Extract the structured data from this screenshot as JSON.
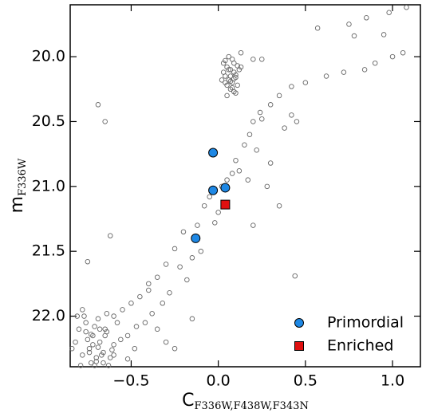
{
  "chart_data": {
    "type": "scatter",
    "xlabel": {
      "main": "C",
      "sub": "F336W,F438W,F343N"
    },
    "ylabel": {
      "main": "m",
      "sub": "F336W"
    },
    "xlim": [
      -0.85,
      1.16
    ],
    "ylim": [
      22.39,
      19.6
    ],
    "xticks": [
      {
        "value": -0.5,
        "label": "−0.5"
      },
      {
        "value": 0,
        "label": "0.0"
      },
      {
        "value": 0.5,
        "label": "0.5"
      },
      {
        "value": 1,
        "label": "1.0"
      }
    ],
    "yticks": [
      {
        "value": 20,
        "label": "20.0"
      },
      {
        "value": 20.5,
        "label": "20.5"
      },
      {
        "value": 21,
        "label": "21.0"
      },
      {
        "value": 21.5,
        "label": "21.5"
      },
      {
        "value": 22,
        "label": "22.0"
      }
    ],
    "legend": "lower right",
    "series": [
      {
        "color": "#666666",
        "marker": "open-circle",
        "x": [
          0.03,
          0.05,
          0.07,
          0.09,
          0.11,
          0.04,
          0.06,
          0.08,
          0.1,
          0.12,
          0.05,
          0.07,
          0.09,
          0.03,
          0.08,
          0.1,
          0.06,
          0.04,
          0.11,
          0.07,
          0.09,
          0.05,
          0.08,
          0.02,
          0.13,
          0.06,
          0.1,
          0.07,
          0.04,
          0.09,
          0.2,
          0.25,
          0.13,
          1.08,
          0.98,
          0.85,
          0.75,
          0.57,
          0.78,
          0.95,
          1.06,
          1.0,
          0.9,
          0.84,
          0.72,
          0.62,
          0.5,
          0.42,
          0.35,
          0.3,
          0.24,
          0.2,
          0.25,
          0.42,
          0.45,
          0.38,
          0.18,
          0.15,
          0.22,
          0.1,
          0.08,
          0.12,
          0.05,
          0.02,
          -0.05,
          -0.08,
          0.0,
          -0.12,
          -0.2,
          -0.1,
          -0.25,
          -0.3,
          -0.35,
          -0.4,
          -0.28,
          -0.45,
          -0.5,
          -0.55,
          -0.6,
          -0.42,
          -0.35,
          -0.65,
          -0.69,
          -0.65,
          0.35,
          0.44,
          -0.75,
          -0.62,
          0.2,
          0.28,
          0.3,
          0.17,
          -0.02,
          -0.15,
          -0.22,
          -0.18,
          -0.32,
          -0.38,
          -0.47,
          -0.52,
          -0.3,
          -0.25,
          -0.15,
          -0.4,
          -0.82,
          -0.8,
          -0.78,
          -0.76,
          -0.74,
          -0.72,
          -0.7,
          -0.68,
          -0.66,
          -0.64,
          -0.62,
          -0.6,
          -0.58,
          -0.79,
          -0.77,
          -0.75,
          -0.73,
          -0.71,
          -0.69,
          -0.67,
          -0.65,
          -0.63,
          -0.61,
          -0.81,
          -0.76,
          -0.72,
          -0.7,
          -0.68,
          -0.74,
          -0.66,
          -0.84,
          -0.78,
          -0.73,
          -0.69,
          -0.64,
          -0.6,
          -0.56,
          -0.52,
          -0.48,
          -0.71
        ],
        "y": [
          20.05,
          20.08,
          20.1,
          20.12,
          20.07,
          20.15,
          20.18,
          20.2,
          20.14,
          20.1,
          20.22,
          20.25,
          20.17,
          20.12,
          20.02,
          20.28,
          20.0,
          20.2,
          20.22,
          20.15,
          20.05,
          20.3,
          20.24,
          20.18,
          20.08,
          20.1,
          20.16,
          20.19,
          20.03,
          20.27,
          20.02,
          20.02,
          19.97,
          19.62,
          19.66,
          19.7,
          19.75,
          19.78,
          19.84,
          19.83,
          19.97,
          20.0,
          20.05,
          20.1,
          20.12,
          20.15,
          20.2,
          20.23,
          20.3,
          20.37,
          20.43,
          20.5,
          20.48,
          20.45,
          20.5,
          20.55,
          20.6,
          20.68,
          20.72,
          20.8,
          20.9,
          20.88,
          20.95,
          21.0,
          21.08,
          21.15,
          21.2,
          21.3,
          21.35,
          21.5,
          21.48,
          21.6,
          21.7,
          21.75,
          21.82,
          21.85,
          21.9,
          21.95,
          22.0,
          22.05,
          22.1,
          22.1,
          20.37,
          20.5,
          21.15,
          21.69,
          21.58,
          21.38,
          21.3,
          21.0,
          20.82,
          20.95,
          21.28,
          21.55,
          21.62,
          21.72,
          21.9,
          21.98,
          22.08,
          22.15,
          22.2,
          22.25,
          22.02,
          21.8,
          22.2,
          22.1,
          22.3,
          22.05,
          22.25,
          22.15,
          22.35,
          22.2,
          22.28,
          22.12,
          22.32,
          22.22,
          22.05,
          22.38,
          22.0,
          22.18,
          22.36,
          22.08,
          22.24,
          22.3,
          22.15,
          22.38,
          22.26,
          22.0,
          22.12,
          22.22,
          22.32,
          22.1,
          22.28,
          22.36,
          22.25,
          21.95,
          22.14,
          22.02,
          21.98,
          22.3,
          22.18,
          22.33,
          22.25,
          22.38
        ]
      },
      {
        "name": "Primordial",
        "color": "#1e88e5",
        "marker": "circle",
        "x": [
          -0.03,
          -0.03,
          0.04,
          -0.13
        ],
        "y": [
          20.74,
          21.03,
          21.01,
          21.4
        ]
      },
      {
        "name": "Enriched",
        "color": "#e01010",
        "marker": "square",
        "x": [
          0.04
        ],
        "y": [
          21.14
        ]
      }
    ]
  }
}
